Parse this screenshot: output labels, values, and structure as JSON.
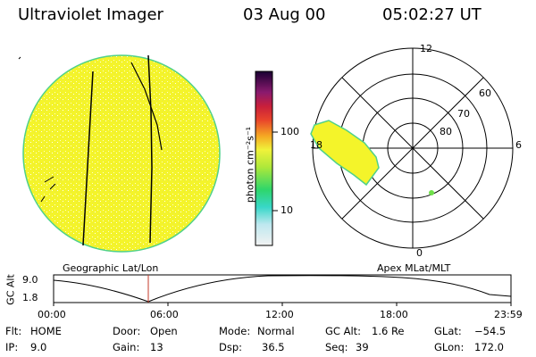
{
  "header": {
    "title": "Ultraviolet Imager",
    "date": "03 Aug 00",
    "time": "05:02:27 UT"
  },
  "colorbar": {
    "unit_label": "photon cm⁻²s⁻¹",
    "ticks": [
      "100",
      "10"
    ]
  },
  "polar": {
    "mlt_labels": [
      "12",
      "18",
      "6",
      "0"
    ],
    "mlat_labels": [
      "60",
      "70",
      "80"
    ]
  },
  "panels": {
    "left_caption": "Geographic Lat/Lon",
    "right_caption": "Apex MLat/MLT"
  },
  "timeline": {
    "axis_label": "GC Alt",
    "y_max": "9.0",
    "y_min": "1.8",
    "x_ticks": [
      "00:00",
      "06:00",
      "12:00",
      "18:00",
      "23:59"
    ]
  },
  "info": {
    "flt_label": "Flt:",
    "flt_value": "HOME",
    "ip_label": "IP:",
    "ip_value": "9.0",
    "door_label": "Door:",
    "door_value": "Open",
    "gain_label": "Gain:",
    "gain_value": "13",
    "mode_label": "Mode:",
    "mode_value": "Normal",
    "dsp_label": "Dsp:",
    "dsp_value": "36.5",
    "gcalt_label": "GC Alt:",
    "gcalt_value": "1.6 Re",
    "seq_label": "Seq:",
    "seq_value": "39",
    "glat_label": "GLat:",
    "glat_value": "−54.5",
    "glon_label": "GLon:",
    "glon_value": "172.0"
  },
  "colors": {
    "disk_fill": "#f4f42a",
    "disk_edge": "#4fd18a",
    "marker": "#c43a2a"
  }
}
